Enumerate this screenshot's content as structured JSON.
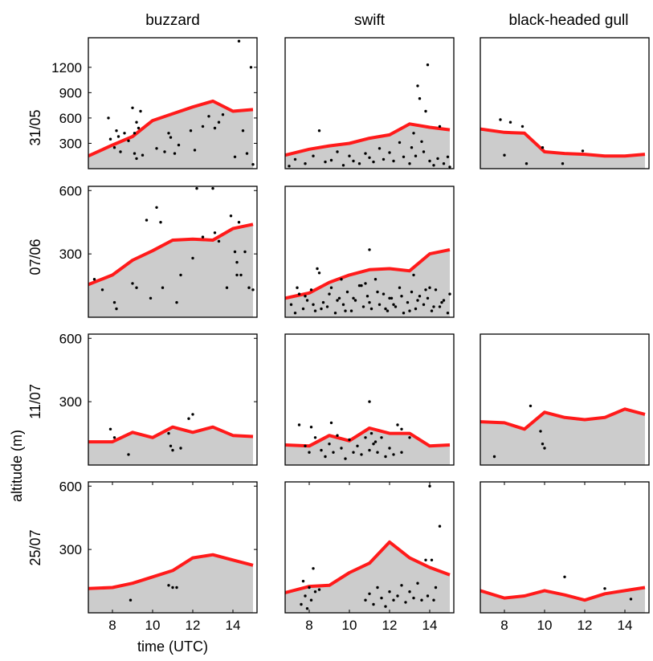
{
  "figure": {
    "x_axis_label": "time (UTC)",
    "y_axis_label": "altitude (m)",
    "columns": [
      "buzzard",
      "swift",
      "black-headed gull"
    ],
    "rows": [
      "31/05",
      "07/06",
      "11/07",
      "25/07"
    ],
    "colors": {
      "fill": "#cccccc",
      "line": "#ff1a1a",
      "points": "#000000",
      "frame": "#000000"
    }
  },
  "chart_data": [
    {
      "type": "area",
      "title": "buzzard",
      "row": "31/05",
      "xlabel": "",
      "ylabel": "31/05",
      "xlim": [
        6.8,
        15.2
      ],
      "ylim": [
        0,
        1550
      ],
      "xticks": [],
      "yticks": [
        300,
        600,
        900,
        1200
      ],
      "boundary": {
        "x": [
          6.8,
          8,
          9,
          10,
          11,
          12,
          13,
          14,
          15
        ],
        "y": [
          150,
          280,
          380,
          570,
          650,
          730,
          800,
          680,
          700
        ]
      },
      "points": {
        "x": [
          7.8,
          7.9,
          8.1,
          8.2,
          8.3,
          8.4,
          8.6,
          8.8,
          9.0,
          9.1,
          9.1,
          9.2,
          9.2,
          9.3,
          9.4,
          9.5,
          10.2,
          10.6,
          10.8,
          10.9,
          11.1,
          11.3,
          11.9,
          12.1,
          12.5,
          12.8,
          13.1,
          13.3,
          13.5,
          14.1,
          14.3,
          14.5,
          14.7,
          14.9,
          15.0
        ],
        "y": [
          600,
          350,
          250,
          450,
          380,
          200,
          420,
          330,
          720,
          180,
          420,
          120,
          550,
          480,
          680,
          160,
          240,
          200,
          420,
          370,
          180,
          280,
          450,
          220,
          500,
          620,
          480,
          550,
          640,
          140,
          1510,
          450,
          180,
          1200,
          50
        ]
      }
    },
    {
      "type": "area",
      "title": "swift",
      "row": "31/05",
      "xlabel": "",
      "ylabel": "",
      "xlim": [
        6.8,
        15.2
      ],
      "ylim": [
        0,
        1550
      ],
      "xticks": [],
      "yticks": [],
      "boundary": {
        "x": [
          6.8,
          8,
          9,
          10,
          11,
          12,
          13,
          14,
          15
        ],
        "y": [
          160,
          230,
          270,
          300,
          360,
          400,
          530,
          490,
          460
        ]
      },
      "points": {
        "x": [
          7.0,
          7.3,
          7.8,
          8.2,
          8.5,
          8.8,
          9.1,
          9.4,
          9.7,
          10.0,
          10.2,
          10.5,
          10.8,
          11.0,
          11.2,
          11.5,
          11.7,
          12.0,
          12.2,
          12.5,
          12.7,
          13.0,
          13.1,
          13.2,
          13.3,
          13.4,
          13.5,
          13.6,
          13.7,
          13.8,
          13.9,
          14.0,
          14.2,
          14.4,
          14.5,
          14.7,
          14.9,
          15.0
        ],
        "y": [
          30,
          110,
          60,
          150,
          450,
          80,
          100,
          200,
          40,
          150,
          90,
          60,
          180,
          130,
          80,
          240,
          110,
          190,
          90,
          310,
          140,
          60,
          250,
          420,
          150,
          980,
          830,
          320,
          200,
          680,
          1230,
          90,
          40,
          120,
          500,
          60,
          140,
          20
        ]
      }
    },
    {
      "type": "area",
      "title": "black-headed gull",
      "row": "31/05",
      "xlabel": "",
      "ylabel": "",
      "xlim": [
        6.8,
        15.2
      ],
      "ylim": [
        0,
        1550
      ],
      "xticks": [],
      "yticks": [],
      "boundary": {
        "x": [
          6.8,
          8,
          9,
          10,
          11,
          12,
          13,
          14,
          15
        ],
        "y": [
          470,
          430,
          420,
          200,
          180,
          170,
          150,
          150,
          170
        ]
      },
      "points": {
        "x": [
          7.8,
          8.0,
          8.3,
          8.9,
          9.1,
          9.9,
          10.9,
          11.9
        ],
        "y": [
          580,
          160,
          550,
          500,
          60,
          250,
          60,
          210
        ]
      }
    },
    {
      "type": "area",
      "title": "buzzard",
      "row": "07/06",
      "xlabel": "",
      "ylabel": "07/06",
      "xlim": [
        6.8,
        15.2
      ],
      "ylim": [
        0,
        620
      ],
      "xticks": [],
      "yticks": [
        300,
        600
      ],
      "boundary": {
        "x": [
          6.8,
          8,
          9,
          10,
          11,
          12,
          13,
          14,
          15
        ],
        "y": [
          155,
          200,
          270,
          315,
          365,
          370,
          365,
          420,
          440
        ]
      },
      "points": {
        "x": [
          7.1,
          7.5,
          8.1,
          8.2,
          9.0,
          9.2,
          9.7,
          9.9,
          10.2,
          10.4,
          10.5,
          11.2,
          11.4,
          12.0,
          12.2,
          12.5,
          13.0,
          13.1,
          13.3,
          13.7,
          13.9,
          14.1,
          14.2,
          14.2,
          14.3,
          14.4,
          14.6,
          14.8,
          15.0
        ],
        "y": [
          180,
          130,
          70,
          40,
          160,
          140,
          460,
          90,
          520,
          450,
          140,
          70,
          200,
          280,
          610,
          380,
          610,
          400,
          360,
          140,
          480,
          310,
          260,
          200,
          450,
          200,
          310,
          140,
          130
        ]
      }
    },
    {
      "type": "area",
      "title": "swift",
      "row": "07/06",
      "xlabel": "",
      "ylabel": "",
      "xlim": [
        6.8,
        15.2
      ],
      "ylim": [
        0,
        620
      ],
      "xticks": [],
      "yticks": [],
      "boundary": {
        "x": [
          6.8,
          8,
          9,
          10,
          11,
          12,
          13,
          14,
          15
        ],
        "y": [
          90,
          115,
          165,
          200,
          225,
          230,
          220,
          300,
          320
        ]
      },
      "points": {
        "x": [
          7.1,
          7.3,
          7.5,
          7.7,
          7.9,
          8.1,
          8.3,
          8.5,
          8.7,
          8.9,
          9.1,
          9.3,
          9.5,
          9.7,
          9.9,
          10.1,
          10.3,
          10.5,
          10.7,
          10.9,
          11.1,
          11.3,
          11.5,
          11.7,
          11.9,
          12.1,
          12.3,
          12.5,
          12.7,
          12.9,
          13.1,
          13.3,
          13.5,
          13.7,
          13.9,
          14.1,
          14.3,
          14.5,
          14.7,
          14.9,
          7.4,
          7.8,
          8.2,
          8.6,
          9.0,
          9.4,
          9.8,
          10.2,
          10.6,
          11.0,
          11.4,
          11.8,
          12.2,
          12.6,
          13.0,
          13.4,
          13.8,
          14.2,
          14.6,
          15.0,
          8.4,
          9.6,
          10.8,
          11.0,
          12.0,
          13.2,
          14.0
        ],
        "y": [
          60,
          20,
          110,
          40,
          80,
          130,
          30,
          210,
          70,
          50,
          140,
          20,
          90,
          60,
          120,
          30,
          80,
          150,
          50,
          100,
          40,
          180,
          60,
          110,
          30,
          90,
          50,
          140,
          20,
          70,
          120,
          40,
          100,
          60,
          90,
          30,
          130,
          50,
          80,
          20,
          140,
          100,
          60,
          40,
          110,
          80,
          30,
          90,
          150,
          70,
          120,
          40,
          60,
          100,
          30,
          80,
          130,
          50,
          70,
          110,
          230,
          180,
          160,
          320,
          90,
          200,
          140
        ]
      }
    },
    {
      "type": "area",
      "title": "buzzard",
      "row": "11/07",
      "xlabel": "",
      "ylabel": "11/07",
      "xlim": [
        6.8,
        15.2
      ],
      "ylim": [
        0,
        620
      ],
      "xticks": [],
      "yticks": [
        300,
        600
      ],
      "boundary": {
        "x": [
          6.8,
          8,
          9,
          10,
          11,
          12,
          13,
          14,
          15
        ],
        "y": [
          110,
          110,
          155,
          130,
          180,
          155,
          180,
          140,
          135
        ]
      },
      "points": {
        "x": [
          7.9,
          8.1,
          8.8,
          10.8,
          10.9,
          11.0,
          11.4,
          11.8,
          12.0
        ],
        "y": [
          170,
          130,
          50,
          150,
          90,
          70,
          80,
          220,
          240
        ]
      }
    },
    {
      "type": "area",
      "title": "swift",
      "row": "11/07",
      "xlabel": "",
      "ylabel": "",
      "xlim": [
        6.8,
        15.2
      ],
      "ylim": [
        0,
        620
      ],
      "xticks": [],
      "yticks": [],
      "boundary": {
        "x": [
          6.8,
          8,
          9,
          10,
          11,
          12,
          13,
          14,
          15
        ],
        "y": [
          95,
          90,
          140,
          115,
          175,
          150,
          150,
          90,
          95
        ]
      },
      "points": {
        "x": [
          7.5,
          7.8,
          8.0,
          8.3,
          8.6,
          8.8,
          9.0,
          9.2,
          9.4,
          9.6,
          9.8,
          10.0,
          10.2,
          10.4,
          10.6,
          10.8,
          11.0,
          11.0,
          11.2,
          11.4,
          11.6,
          11.8,
          12.0,
          12.2,
          12.4,
          12.6,
          8.1,
          9.1,
          11.1,
          11.3,
          12.6,
          13.0
        ],
        "y": [
          190,
          90,
          60,
          130,
          70,
          40,
          100,
          60,
          140,
          80,
          30,
          120,
          60,
          90,
          50,
          130,
          70,
          300,
          100,
          60,
          130,
          40,
          80,
          50,
          190,
          60,
          180,
          200,
          150,
          110,
          170,
          130
        ]
      }
    },
    {
      "type": "area",
      "title": "black-headed gull",
      "row": "11/07",
      "xlabel": "",
      "ylabel": "",
      "xlim": [
        6.8,
        15.2
      ],
      "ylim": [
        0,
        620
      ],
      "xticks": [],
      "yticks": [],
      "boundary": {
        "x": [
          6.8,
          8,
          9,
          10,
          11,
          12,
          13,
          14,
          15
        ],
        "y": [
          205,
          200,
          170,
          250,
          225,
          215,
          225,
          265,
          240
        ]
      },
      "points": {
        "x": [
          7.5,
          9.3,
          9.8,
          9.9,
          10.0
        ],
        "y": [
          40,
          280,
          160,
          100,
          80
        ]
      }
    },
    {
      "type": "area",
      "title": "buzzard",
      "row": "25/07",
      "xlabel": "time (UTC)",
      "ylabel": "25/07",
      "xlim": [
        6.8,
        15.2
      ],
      "ylim": [
        0,
        620
      ],
      "xticks": [
        8,
        10,
        12,
        14
      ],
      "yticks": [
        300,
        600
      ],
      "boundary": {
        "x": [
          6.8,
          8,
          9,
          10,
          11,
          12,
          13,
          14,
          15
        ],
        "y": [
          115,
          120,
          140,
          170,
          200,
          260,
          275,
          250,
          225
        ]
      },
      "points": {
        "x": [
          8.9,
          10.8,
          11.0,
          11.2
        ],
        "y": [
          60,
          130,
          120,
          120
        ]
      }
    },
    {
      "type": "area",
      "title": "swift",
      "row": "25/07",
      "xlabel": "time (UTC)",
      "ylabel": "",
      "xlim": [
        6.8,
        15.2
      ],
      "ylim": [
        0,
        620
      ],
      "xticks": [
        8,
        10,
        12,
        14
      ],
      "yticks": [],
      "boundary": {
        "x": [
          6.8,
          8,
          9,
          10,
          11,
          12,
          13,
          14,
          15
        ],
        "y": [
          95,
          125,
          130,
          190,
          235,
          335,
          260,
          215,
          180
        ]
      },
      "points": {
        "x": [
          7.6,
          7.7,
          7.8,
          7.9,
          8.0,
          8.1,
          8.2,
          8.3,
          8.5,
          10.8,
          11.0,
          11.2,
          11.4,
          11.6,
          11.8,
          12.0,
          12.2,
          12.4,
          12.6,
          12.8,
          13.0,
          13.2,
          13.4,
          13.6,
          13.8,
          13.9,
          14.0,
          14.1,
          14.2,
          14.3,
          14.5
        ],
        "y": [
          40,
          150,
          80,
          20,
          120,
          60,
          210,
          100,
          110,
          60,
          90,
          40,
          120,
          70,
          30,
          100,
          60,
          80,
          130,
          50,
          100,
          70,
          140,
          60,
          250,
          80,
          600,
          250,
          60,
          120,
          410
        ]
      }
    },
    {
      "type": "area",
      "title": "black-headed gull",
      "row": "25/07",
      "xlabel": "time (UTC)",
      "ylabel": "",
      "xlim": [
        6.8,
        15.2
      ],
      "ylim": [
        0,
        620
      ],
      "xticks": [
        8,
        10,
        12,
        14
      ],
      "yticks": [],
      "boundary": {
        "x": [
          6.8,
          8,
          9,
          10,
          11,
          12,
          13,
          14,
          15
        ],
        "y": [
          105,
          70,
          80,
          105,
          85,
          60,
          90,
          105,
          120
        ]
      },
      "points": {
        "x": [
          11.0,
          13.0,
          14.3
        ],
        "y": [
          170,
          115,
          65
        ]
      }
    }
  ]
}
